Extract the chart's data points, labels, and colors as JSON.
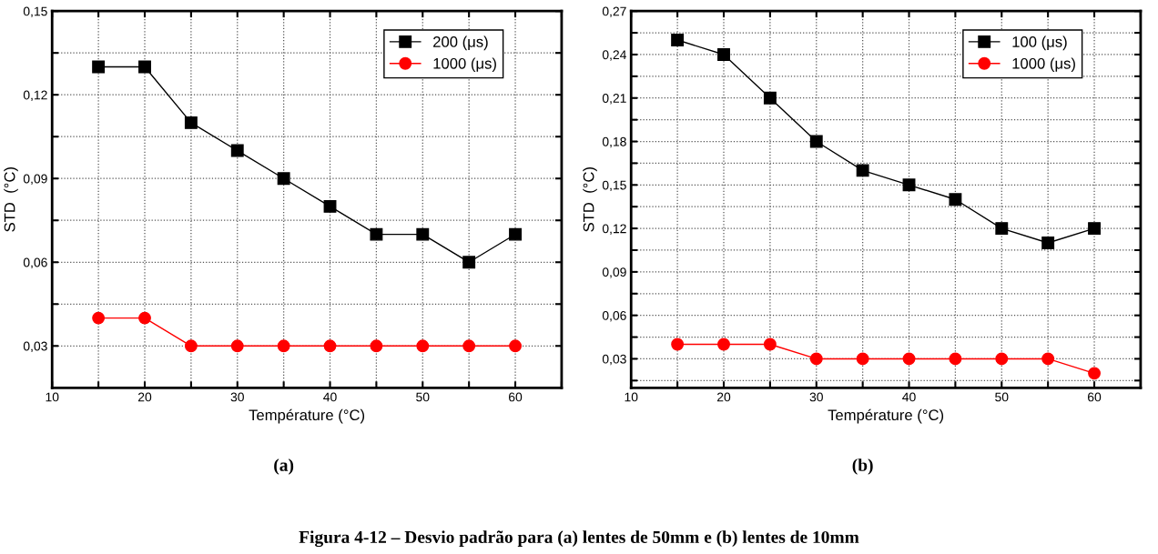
{
  "chart_data": [
    {
      "type": "line",
      "xlabel": "Température (°C)",
      "ylabel": "STD  (°C)",
      "annotations": [
        "(a)",
        "Figura 4-12 – Desvio padrão para (a) lentes de 50mm e (b) lentes de 10mm"
      ],
      "x": [
        15,
        20,
        25,
        30,
        35,
        40,
        45,
        50,
        55,
        60
      ],
      "series": [
        {
          "name": "200 (μs)",
          "color": "#000000",
          "marker": "square",
          "values": [
            0.13,
            0.13,
            0.11,
            0.1,
            0.09,
            0.08,
            0.07,
            0.07,
            0.06,
            0.07
          ]
        },
        {
          "name": "1000 (μs)",
          "color": "#ff0000",
          "marker": "circle",
          "values": [
            0.04,
            0.04,
            0.03,
            0.03,
            0.03,
            0.03,
            0.03,
            0.03,
            0.03,
            0.03
          ]
        }
      ],
      "xlim": [
        10,
        65
      ],
      "xticks": [
        10,
        {
          "value": 15,
          "label": null
        },
        20,
        {
          "value": 25,
          "label": null
        },
        30,
        {
          "value": 35,
          "label": null
        },
        40,
        {
          "value": 45,
          "label": null
        },
        50,
        {
          "value": 55,
          "label": null
        },
        60,
        {
          "value": 65,
          "label": null
        }
      ],
      "ylim": [
        0.015,
        0.15
      ],
      "yticks": [
        {
          "value": 0.03,
          "label": "0,03"
        },
        {
          "value": 0.045,
          "label": null
        },
        {
          "value": 0.06,
          "label": "0,06"
        },
        {
          "value": 0.075,
          "label": null
        },
        {
          "value": 0.09,
          "label": "0,09"
        },
        {
          "value": 0.105,
          "label": null
        },
        {
          "value": 0.12,
          "label": "0,12"
        },
        {
          "value": 0.135,
          "label": null
        },
        {
          "value": 0.15,
          "label": "0,15"
        }
      ],
      "grid": true,
      "legend": "top right",
      "line_style": "solid"
    },
    {
      "type": "line",
      "xlabel": "Température (°C)",
      "ylabel": "STD  (°C)",
      "annotations": [
        "(b)"
      ],
      "x": [
        15,
        20,
        25,
        30,
        35,
        40,
        45,
        50,
        55,
        60
      ],
      "series": [
        {
          "name": "100 (μs)",
          "color": "#000000",
          "marker": "square",
          "values": [
            0.25,
            0.24,
            0.21,
            0.18,
            0.16,
            0.15,
            0.14,
            0.12,
            0.11,
            0.12
          ]
        },
        {
          "name": "1000 (μs)",
          "color": "#ff0000",
          "marker": "circle",
          "values": [
            0.04,
            0.04,
            0.04,
            0.03,
            0.03,
            0.03,
            0.03,
            0.03,
            0.03,
            0.02
          ]
        }
      ],
      "xlim": [
        10,
        65
      ],
      "xticks": [
        10,
        {
          "value": 15,
          "label": null
        },
        20,
        {
          "value": 25,
          "label": null
        },
        30,
        {
          "value": 35,
          "label": null
        },
        40,
        {
          "value": 45,
          "label": null
        },
        50,
        {
          "value": 55,
          "label": null
        },
        60,
        {
          "value": 65,
          "label": null
        }
      ],
      "ylim": [
        0.01,
        0.27
      ],
      "yticks": [
        {
          "value": 0.015,
          "label": null
        },
        {
          "value": 0.03,
          "label": "0,03"
        },
        {
          "value": 0.045,
          "label": null
        },
        {
          "value": 0.06,
          "label": "0,06"
        },
        {
          "value": 0.075,
          "label": null
        },
        {
          "value": 0.09,
          "label": "0,09"
        },
        {
          "value": 0.105,
          "label": null
        },
        {
          "value": 0.12,
          "label": "0,12"
        },
        {
          "value": 0.135,
          "label": null
        },
        {
          "value": 0.15,
          "label": "0,15"
        },
        {
          "value": 0.165,
          "label": null
        },
        {
          "value": 0.18,
          "label": "0,18"
        },
        {
          "value": 0.195,
          "label": null
        },
        {
          "value": 0.21,
          "label": "0,21"
        },
        {
          "value": 0.225,
          "label": null
        },
        {
          "value": 0.24,
          "label": "0,24"
        },
        {
          "value": 0.255,
          "label": null
        },
        {
          "value": 0.27,
          "label": "0,27"
        }
      ],
      "grid": true,
      "legend": "top right",
      "line_style": "solid"
    }
  ]
}
